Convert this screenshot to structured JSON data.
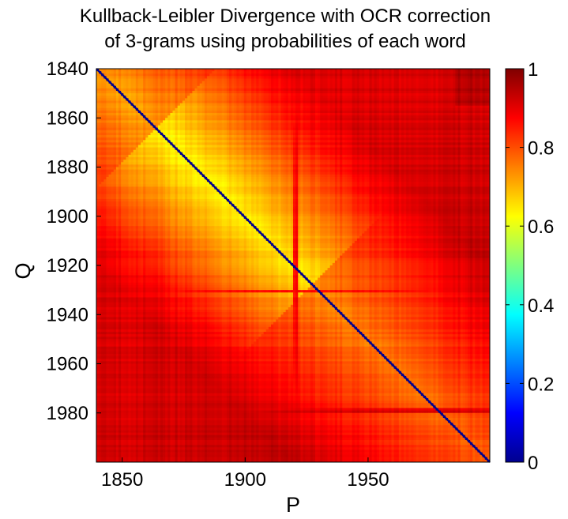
{
  "chart_data": {
    "type": "heatmap",
    "title": [
      "Kullback-Leibler Divergence with OCR correction",
      "of 3-grams using probabilities of each word"
    ],
    "xlabel": "P",
    "ylabel": "Q",
    "x_range": [
      1840,
      1999
    ],
    "y_range": [
      1840,
      1999
    ],
    "xticks": [
      1850,
      1900,
      1950
    ],
    "yticks": [
      1840,
      1860,
      1880,
      1900,
      1920,
      1940,
      1960,
      1980
    ],
    "colorbar": {
      "min": 0,
      "max": 1,
      "ticks": [
        0,
        0.2,
        0.4,
        0.6,
        0.8,
        1
      ],
      "tick_labels": [
        "0",
        "0.2",
        "0.4",
        "0.6",
        "0.8",
        "1"
      ],
      "colormap": "jet"
    },
    "diagonal_value": 0,
    "grid": false,
    "bands": {
      "rows": [
        {
          "year": 1930,
          "value": 0.86
        },
        {
          "year": 1978,
          "value": 0.9
        },
        {
          "year": 1979,
          "value": 0.92
        }
      ],
      "cols": [
        {
          "year": 1920,
          "value": 0.86
        },
        {
          "year": 1921,
          "value": 0.87
        }
      ]
    }
  }
}
